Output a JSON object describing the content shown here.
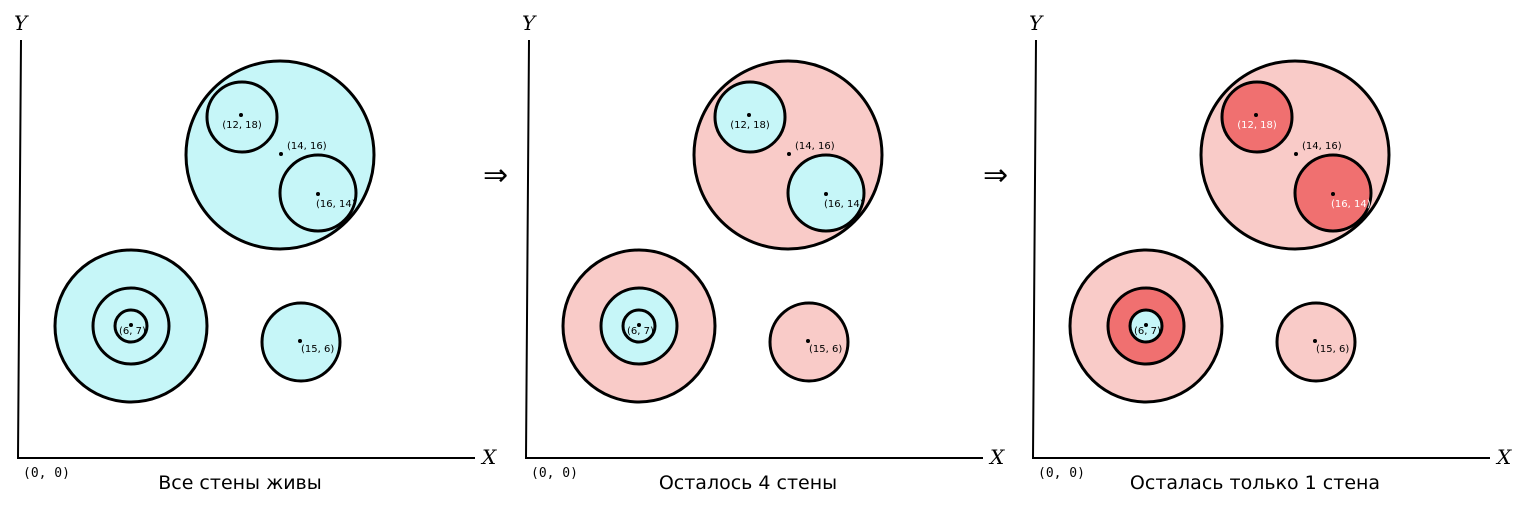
{
  "colors": {
    "alive": "#c6f6f8",
    "destroyed_light": "#f9cbc8",
    "destroyed_dark": "#f07070",
    "stroke": "#000000"
  },
  "axis_labels": {
    "x": "X",
    "y": "Y",
    "origin": "(0, 0)"
  },
  "arrow_symbol": "⇒",
  "panels": [
    {
      "caption": "Все стены живы",
      "circles": {
        "big": "alive",
        "inner_a": "alive",
        "inner_b": "alive",
        "left_outer": "alive",
        "left_middle": "alive",
        "left_inner": "alive",
        "small": "alive"
      },
      "points": [
        {
          "label": "(12, 18)",
          "light": false
        },
        {
          "label": "(14,  16)",
          "light": false
        },
        {
          "label": "(16, 14)",
          "light": false
        },
        {
          "label": "(6, 7)",
          "light": false
        },
        {
          "label": "(15, 6)",
          "light": false
        }
      ]
    },
    {
      "caption": "Осталось 4 стены",
      "circles": {
        "big": "destroyed_light",
        "inner_a": "alive",
        "inner_b": "alive",
        "left_outer": "destroyed_light",
        "left_middle": "alive",
        "left_inner": "alive",
        "small": "destroyed_light"
      },
      "points": [
        {
          "label": "(12, 18)",
          "light": false
        },
        {
          "label": "(14,  16)",
          "light": false
        },
        {
          "label": "(16, 14)",
          "light": false
        },
        {
          "label": "(6, 7)",
          "light": false
        },
        {
          "label": "(15, 6)",
          "light": false
        }
      ]
    },
    {
      "caption": "Осталась только 1 стена",
      "circles": {
        "big": "destroyed_light",
        "inner_a": "destroyed_dark",
        "inner_b": "destroyed_dark",
        "left_outer": "destroyed_light",
        "left_middle": "destroyed_dark",
        "left_inner": "alive",
        "small": "destroyed_light"
      },
      "points": [
        {
          "label": "(12, 18)",
          "light": true
        },
        {
          "label": "(14,  16)",
          "light": false
        },
        {
          "label": "(16, 14)",
          "light": true
        },
        {
          "label": "(6, 7)",
          "light": false
        },
        {
          "label": "(15, 6)",
          "light": false
        }
      ]
    }
  ]
}
